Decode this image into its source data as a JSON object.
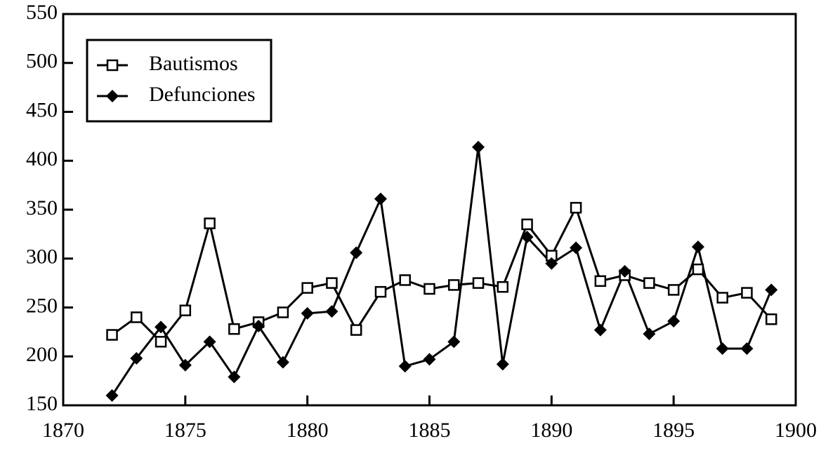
{
  "chart_data": {
    "type": "line",
    "x": [
      1872,
      1873,
      1874,
      1875,
      1876,
      1877,
      1878,
      1879,
      1880,
      1881,
      1882,
      1883,
      1884,
      1885,
      1886,
      1887,
      1888,
      1889,
      1890,
      1891,
      1892,
      1893,
      1894,
      1895,
      1896,
      1897,
      1898,
      1899
    ],
    "series": [
      {
        "name": "Bautismos",
        "color": "#000000",
        "marker": "square",
        "values": [
          222,
          240,
          215,
          247,
          336,
          228,
          235,
          245,
          270,
          275,
          227,
          266,
          278,
          269,
          273,
          275,
          271,
          335,
          303,
          352,
          277,
          283,
          275,
          268,
          289,
          260,
          265,
          238
        ]
      },
      {
        "name": "Defunciones",
        "color": "#000000",
        "marker": "diamond",
        "values": [
          160,
          198,
          230,
          191,
          215,
          179,
          231,
          194,
          244,
          246,
          306,
          361,
          190,
          197,
          215,
          414,
          192,
          322,
          295,
          311,
          227,
          287,
          223,
          236,
          312,
          208,
          208,
          268
        ]
      }
    ],
    "xlim": [
      1870,
      1900
    ],
    "xticks": [
      1870,
      1875,
      1880,
      1885,
      1890,
      1895,
      1900
    ],
    "ylim": [
      150,
      550
    ],
    "yticks": [
      150,
      200,
      250,
      300,
      350,
      400,
      450,
      500,
      550
    ],
    "legend": "upper left",
    "grid": false
  }
}
